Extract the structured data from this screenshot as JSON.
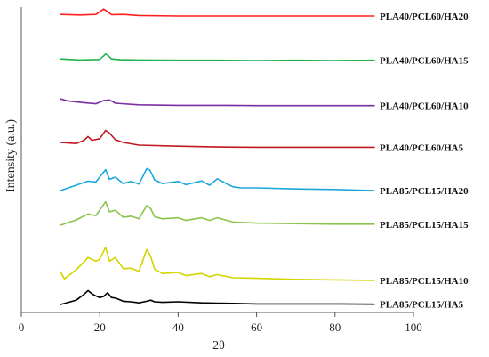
{
  "chart_data": {
    "type": "line",
    "xlabel": "2θ",
    "ylabel": "Intensity (a.u.)",
    "xlim": [
      0,
      100
    ],
    "x_ticks": [
      "0",
      "20",
      "40",
      "60",
      "80",
      "100"
    ],
    "y_ticks_shown": false,
    "grid": false,
    "legend": "labels at right end of each curve",
    "offset_stacked": true,
    "series": [
      {
        "name": "PLA40/PCL60/HA20",
        "color": "#ff1f1f",
        "x": [
          10,
          15,
          19,
          21,
          22,
          23,
          26,
          30,
          40,
          50,
          60,
          70,
          80,
          90
        ],
        "y": [
          0.6,
          0.4,
          0.6,
          2.6,
          1.6,
          0.5,
          0.6,
          0.2,
          0.0,
          0.0,
          0.0,
          0.0,
          0.0,
          0.0
        ]
      },
      {
        "name": "PLA40/PCL60/HA15",
        "color": "#22b24c",
        "x": [
          10,
          15,
          20,
          21.5,
          22,
          23,
          25,
          30,
          40,
          50,
          60,
          70,
          80,
          90
        ],
        "y": [
          0.6,
          0.2,
          0.4,
          2.4,
          2.0,
          0.6,
          0.3,
          0.2,
          0.1,
          0.1,
          0.0,
          0.1,
          0.0,
          0.1
        ]
      },
      {
        "name": "PLA40/PCL60/HA10",
        "color": "#7b2ea3",
        "x": [
          10,
          12,
          16,
          19,
          21,
          22.5,
          24,
          30,
          40,
          50,
          60,
          70,
          80,
          90
        ],
        "y": [
          2.6,
          1.8,
          1.2,
          0.8,
          2.0,
          2.2,
          1.0,
          0.4,
          0.2,
          0.2,
          0.1,
          0.1,
          0.1,
          0.1
        ]
      },
      {
        "name": "PLA40/PCL60/HA5",
        "color": "#c01820",
        "x": [
          10,
          14,
          16,
          17,
          18,
          20,
          21.5,
          22.5,
          24,
          26,
          30,
          40,
          50,
          60,
          70,
          80,
          90
        ],
        "y": [
          2.0,
          1.6,
          2.8,
          4.2,
          2.8,
          3.4,
          6.5,
          5.5,
          3.0,
          2.0,
          1.0,
          0.6,
          0.3,
          0.2,
          0.2,
          0.2,
          0.2
        ]
      },
      {
        "name": "PLA85/PCL15/HA20",
        "color": "#1aa7dc",
        "x": [
          10,
          14,
          17,
          19,
          21.5,
          22.5,
          24,
          26,
          28,
          30,
          32,
          32.8,
          34,
          36,
          40,
          42,
          46,
          48,
          50,
          52,
          54,
          56,
          60,
          70,
          80,
          90
        ],
        "y": [
          0.0,
          2.0,
          3.5,
          3.2,
          7.8,
          4.2,
          5.0,
          2.6,
          3.4,
          2.4,
          8.2,
          7.6,
          4.0,
          2.6,
          3.4,
          2.2,
          3.6,
          2.0,
          4.4,
          2.8,
          1.4,
          1.0,
          1.0,
          0.6,
          0.4,
          0.0
        ]
      },
      {
        "name": "PLA85/PCL15/HA15",
        "color": "#8bc34a",
        "x": [
          10,
          14,
          17,
          19,
          21.5,
          22.5,
          24,
          26,
          28,
          30,
          32,
          33,
          34,
          36,
          40,
          42,
          46,
          48,
          50,
          54,
          60,
          70,
          80,
          90
        ],
        "y": [
          0.0,
          2.0,
          4.2,
          3.6,
          8.8,
          5.0,
          5.6,
          3.0,
          3.4,
          2.4,
          7.4,
          6.2,
          3.2,
          2.4,
          2.8,
          1.8,
          2.8,
          1.8,
          2.8,
          1.2,
          0.8,
          0.6,
          0.4,
          0.4
        ]
      },
      {
        "name": "PLA85/PCL15/HA10",
        "color": "#d4d400",
        "x": [
          10,
          11,
          14,
          16,
          17,
          19,
          20,
          21.5,
          22.5,
          24,
          26,
          28,
          30,
          32,
          33,
          34,
          36,
          40,
          42,
          46,
          48,
          50,
          54,
          60,
          70,
          80,
          90
        ],
        "y": [
          3.2,
          0.6,
          4.0,
          7.0,
          8.6,
          7.2,
          8.0,
          12.4,
          7.2,
          8.6,
          4.4,
          4.6,
          3.4,
          11.6,
          9.0,
          4.2,
          2.6,
          3.0,
          1.8,
          2.6,
          1.4,
          2.2,
          1.0,
          0.8,
          0.4,
          0.2,
          0.0
        ]
      },
      {
        "name": "PLA85/PCL15/HA5",
        "color": "#000000",
        "x": [
          10,
          12,
          14,
          16,
          17,
          18,
          19,
          20,
          21,
          22,
          23,
          24,
          26,
          28,
          30,
          32,
          33,
          34,
          36,
          40,
          46,
          50,
          54,
          60,
          70,
          80,
          90
        ],
        "y": [
          0.0,
          0.8,
          1.6,
          3.8,
          5.2,
          4.0,
          3.2,
          2.6,
          3.0,
          4.4,
          2.6,
          2.4,
          1.2,
          1.0,
          0.6,
          1.2,
          1.6,
          1.0,
          0.8,
          1.0,
          0.6,
          0.5,
          0.4,
          0.2,
          0.2,
          0.2,
          0.1
        ]
      }
    ]
  }
}
